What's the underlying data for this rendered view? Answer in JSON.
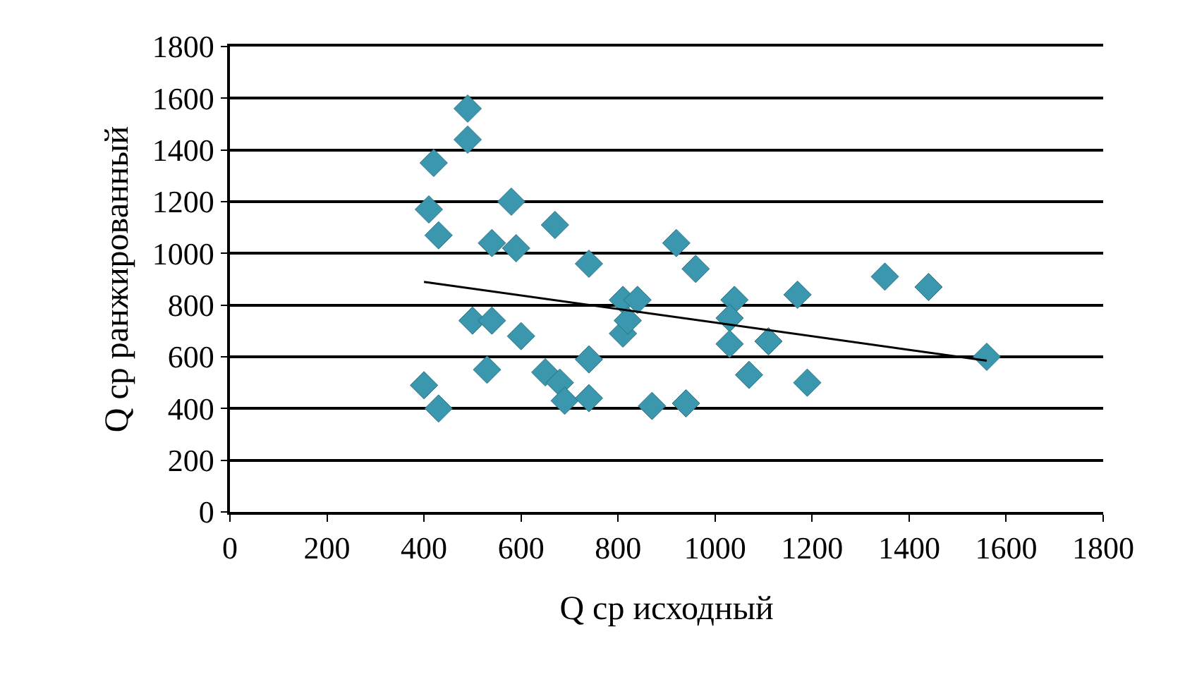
{
  "chart_data": {
    "type": "scatter",
    "xlabel": "Q ср исходный",
    "ylabel": "Q ср ранжированный",
    "xlim": [
      0,
      1800
    ],
    "ylim": [
      0,
      1800
    ],
    "xticks": [
      0,
      200,
      400,
      600,
      800,
      1000,
      1200,
      1400,
      1600,
      1800
    ],
    "yticks": [
      0,
      200,
      400,
      600,
      800,
      1000,
      1200,
      1400,
      1600,
      1800
    ],
    "grid": "y",
    "legend": false,
    "series": [
      {
        "marker": "diamond",
        "color": "#3a97ad",
        "x": [
          400,
          430,
          490,
          490,
          420,
          410,
          430,
          580,
          670,
          540,
          590,
          740,
          500,
          540,
          600,
          530,
          650,
          680,
          690,
          740,
          740,
          870,
          940,
          920,
          960,
          810,
          840,
          810,
          820,
          1040,
          1030,
          1030,
          1070,
          1110,
          1170,
          1190,
          1350,
          1440,
          1560
        ],
        "values": [
          490,
          400,
          1560,
          1440,
          1350,
          1170,
          1070,
          1200,
          1110,
          1040,
          1020,
          960,
          740,
          740,
          680,
          550,
          540,
          500,
          430,
          440,
          590,
          410,
          420,
          1040,
          940,
          820,
          820,
          690,
          740,
          820,
          750,
          650,
          530,
          660,
          840,
          500,
          910,
          870,
          600
        ]
      },
      {
        "type": "line",
        "marker": "none",
        "color": "#000000",
        "x": [
          400,
          1560
        ],
        "values": [
          890,
          585
        ]
      }
    ]
  }
}
